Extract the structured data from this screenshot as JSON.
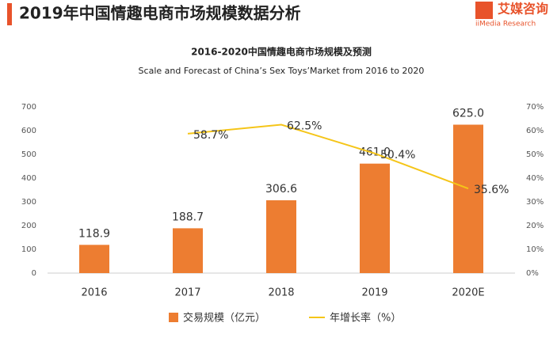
{
  "header": {
    "title": "2019年中国情趣电商市场规模数据分析",
    "logo": "艾媒咨询",
    "logo_sub": "iiMedia Research"
  },
  "chart_data": {
    "type": "bar",
    "title": "2016-2020中国情趣电商市场规模及预测",
    "subtitle": "Scale and Forecast of China’s Sex Toys’Market from 2016 to 2020",
    "categories": [
      "2016",
      "2017",
      "2018",
      "2019",
      "2020E"
    ],
    "series": [
      {
        "name": "交易规模（亿元）",
        "type": "bar",
        "color": "#ed7d31",
        "values": [
          118.9,
          188.7,
          306.6,
          461,
          625
        ],
        "value_labels": [
          "118.9",
          "188.7",
          "306.6",
          "461.0",
          "625.0"
        ]
      },
      {
        "name": "年增长率（%）",
        "type": "line",
        "axis": "y2",
        "color": "#f5c518",
        "values": [
          null,
          58.7,
          62.5,
          50.4,
          35.6
        ],
        "value_labels": [
          null,
          "58.7%",
          "62.5%",
          "50.4%",
          "35.6%"
        ]
      }
    ],
    "ylim": [
      0,
      700
    ],
    "yticks": [
      0,
      100,
      200,
      300,
      400,
      500,
      600,
      700
    ],
    "y2lim": [
      0,
      70
    ],
    "y2ticks": [
      {
        "value": 0,
        "label": "0%"
      },
      {
        "value": 10,
        "label": "10%"
      },
      {
        "value": 20,
        "label": "20%"
      },
      {
        "value": 30,
        "label": "30%"
      },
      {
        "value": 40,
        "label": "40%"
      },
      {
        "value": 50,
        "label": "50%"
      },
      {
        "value": 60,
        "label": "60%"
      },
      {
        "value": 70,
        "label": "70%"
      }
    ],
    "legend": "bottom"
  }
}
